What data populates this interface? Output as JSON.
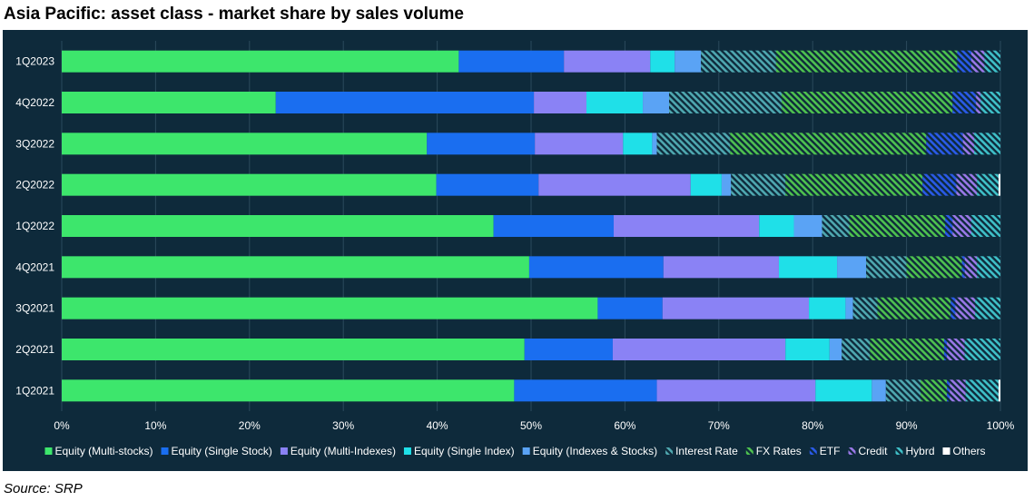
{
  "title": "Asia Pacific: asset class - market share by sales volume",
  "source": "Source: SRP",
  "colors": {
    "background": "#0e2a3b",
    "Equity (Multi-stocks)": "#3de66c",
    "Equity (Single Stock)": "#1a6ef0",
    "Equity (Multi-Indexes)": "#8a82f5",
    "Equity (Single Index)": "#1fe0e8",
    "Equity (Indexes & Stocks)": "#5aa3f5",
    "Interest Rate": "#4fa8b0",
    "FX Rates": "#4ec24f",
    "ETF": "#2a5ae8",
    "Credit": "#9a78e8",
    "Hybrd": "#3fc0c8",
    "Others": "#ffffff"
  },
  "chart_data": {
    "type": "bar",
    "orientation": "horizontal",
    "stacked": true,
    "title": "Asia Pacific: asset class - market share by sales volume",
    "categories": [
      "1Q2023",
      "4Q2022",
      "3Q2022",
      "2Q2022",
      "1Q2022",
      "4Q2021",
      "3Q2021",
      "2Q2021",
      "1Q2021"
    ],
    "x_ticks": [
      "0%",
      "10%",
      "20%",
      "30%",
      "40%",
      "50%",
      "60%",
      "70%",
      "80%",
      "90%",
      "100%"
    ],
    "xlim": [
      0,
      100
    ],
    "legend_position": "bottom",
    "series": [
      {
        "name": "Equity (Multi-stocks)",
        "pattern": "solid",
        "values": [
          42.3,
          22.8,
          38.9,
          39.9,
          46.0,
          49.8,
          57.1,
          49.3,
          48.2
        ]
      },
      {
        "name": "Equity (Single Stock)",
        "pattern": "solid",
        "values": [
          11.2,
          27.5,
          11.5,
          10.9,
          12.8,
          14.3,
          6.9,
          9.4,
          15.2
        ]
      },
      {
        "name": "Equity (Multi-Indexes)",
        "pattern": "solid",
        "values": [
          9.2,
          5.6,
          9.4,
          16.2,
          15.5,
          12.3,
          15.6,
          18.4,
          16.9
        ]
      },
      {
        "name": "Equity (Single Index)",
        "pattern": "solid",
        "values": [
          2.6,
          6.0,
          3.1,
          3.3,
          3.7,
          6.2,
          3.9,
          4.7,
          6.0
        ]
      },
      {
        "name": "Equity (Indexes & Stocks)",
        "pattern": "solid",
        "values": [
          2.8,
          2.8,
          0.5,
          1.0,
          3.0,
          3.1,
          0.8,
          1.3,
          1.5
        ]
      },
      {
        "name": "Interest Rate",
        "pattern": "hatch",
        "values": [
          8.0,
          12.0,
          7.8,
          5.8,
          2.9,
          4.3,
          2.6,
          3.0,
          3.7
        ]
      },
      {
        "name": "FX Rates",
        "pattern": "hatch",
        "values": [
          19.3,
          18.2,
          20.9,
          14.6,
          10.2,
          5.9,
          7.8,
          7.9,
          2.8
        ]
      },
      {
        "name": "ETF",
        "pattern": "hatch",
        "values": [
          1.5,
          2.5,
          3.9,
          3.6,
          0.8,
          0.3,
          0.5,
          0.3,
          0.3
        ]
      },
      {
        "name": "Credit",
        "pattern": "hatch",
        "values": [
          1.4,
          0.5,
          1.2,
          2.2,
          2.0,
          1.3,
          2.1,
          1.9,
          1.7
        ]
      },
      {
        "name": "Hybrd",
        "pattern": "hatch",
        "values": [
          1.7,
          2.1,
          2.8,
          2.3,
          3.1,
          2.5,
          2.7,
          3.8,
          3.5
        ]
      },
      {
        "name": "Others",
        "pattern": "solid",
        "values": [
          0,
          0,
          0,
          0.2,
          0,
          0,
          0,
          0,
          0.2
        ]
      }
    ]
  }
}
